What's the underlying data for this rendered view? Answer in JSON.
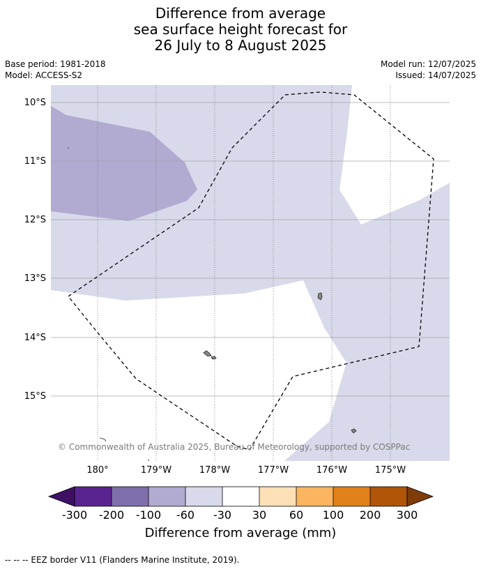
{
  "title": {
    "line1": "Difference from average",
    "line2": "sea surface height forecast for",
    "line3": "26 July to 8 August 2025"
  },
  "meta": {
    "base_period": "Base period: 1981-2018",
    "model": "Model: ACCESS-S2",
    "model_run": "Model run: 12/07/2025",
    "issued": "Issued: 14/07/2025"
  },
  "map": {
    "lat_labels": [
      "10°S",
      "11°S",
      "12°S",
      "13°S",
      "14°S",
      "15°S"
    ],
    "lon_labels": [
      "180°",
      "179°W",
      "178°W",
      "177°W",
      "176°W",
      "175°W"
    ],
    "copyright": "© Commonwealth of Australia 2025, Bureau of Meteorology, supported by COSPPac",
    "colors": {
      "range_-100_-60": "#b1aad1",
      "range_-60_-30": "#d8d9ea",
      "range_-30_30": "#ffffff",
      "eez_border": "#000000",
      "land": "#888888"
    }
  },
  "colorbar": {
    "ticks": [
      "-300",
      "-200",
      "-100",
      "-60",
      "-30",
      "30",
      "60",
      "100",
      "200",
      "300"
    ],
    "colors": [
      "#3f0f66",
      "#5a2490",
      "#7f70ad",
      "#b1aad1",
      "#d8d9ea",
      "#ffffff",
      "#fde0b5",
      "#fbb45f",
      "#e1811a",
      "#b15508",
      "#7f3b08"
    ],
    "label": "Difference from average (mm)"
  },
  "footnote": "-- -- -- EEZ border V11 (Flanders Marine Institute, 2019)."
}
